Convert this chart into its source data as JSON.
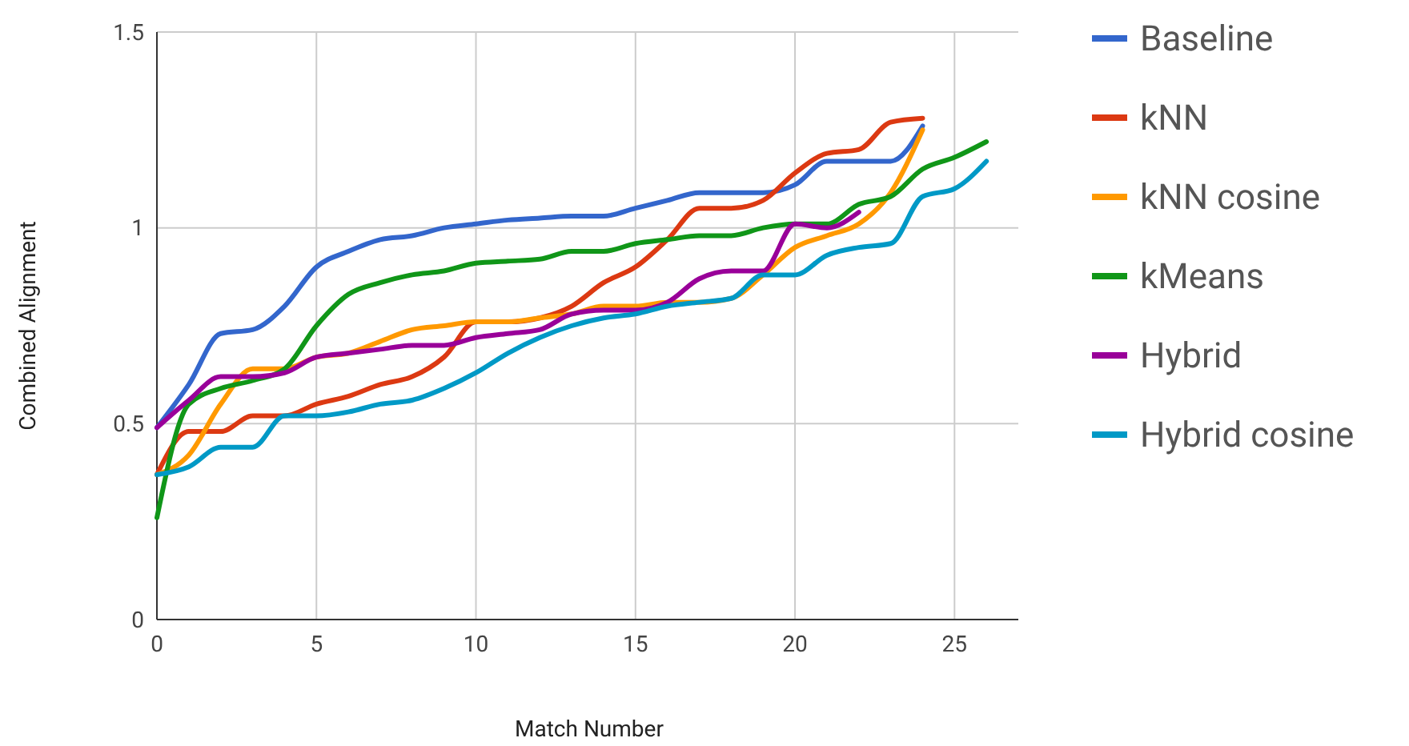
{
  "chart_data": {
    "type": "line",
    "xlabel": "Match Number",
    "ylabel": "Combined Alignment",
    "x": [
      0,
      1,
      2,
      3,
      4,
      5,
      6,
      7,
      8,
      9,
      10,
      11,
      12,
      13,
      14,
      15,
      16,
      17,
      18,
      19,
      20,
      21,
      22,
      23,
      24,
      25,
      26
    ],
    "xlim": [
      0,
      27
    ],
    "xticks": [
      0,
      5,
      10,
      15,
      20,
      25
    ],
    "ylim": [
      0,
      1.5
    ],
    "yticks": [
      0,
      0.5,
      1,
      1.5
    ],
    "grid": true,
    "legend": "right",
    "marker": "none",
    "line_style": "solid",
    "series": [
      {
        "name": "Baseline",
        "color": "#3366cc",
        "values": [
          0.49,
          0.6,
          0.73,
          0.74,
          0.8,
          0.9,
          0.94,
          0.97,
          0.98,
          1.0,
          1.01,
          1.02,
          1.025,
          1.03,
          1.03,
          1.05,
          1.07,
          1.09,
          1.09,
          1.09,
          1.11,
          1.17,
          1.17,
          1.17,
          1.26,
          null,
          null
        ]
      },
      {
        "name": "kNN",
        "color": "#dc3912",
        "values": [
          0.37,
          0.48,
          0.48,
          0.52,
          0.52,
          0.55,
          0.57,
          0.6,
          0.62,
          0.67,
          0.76,
          0.76,
          0.77,
          0.8,
          0.86,
          0.9,
          0.97,
          1.05,
          1.05,
          1.07,
          1.14,
          1.19,
          1.2,
          1.27,
          1.28,
          null,
          null
        ]
      },
      {
        "name": "kNN cosine",
        "color": "#ff9900",
        "values": [
          0.37,
          0.42,
          0.55,
          0.64,
          0.64,
          0.67,
          0.68,
          0.71,
          0.74,
          0.75,
          0.76,
          0.76,
          0.77,
          0.78,
          0.8,
          0.8,
          0.81,
          0.81,
          0.82,
          0.88,
          0.95,
          0.98,
          1.01,
          1.09,
          1.25,
          null,
          null
        ]
      },
      {
        "name": "kMeans",
        "color": "#109618",
        "values": [
          0.26,
          0.55,
          0.59,
          0.61,
          0.64,
          0.75,
          0.83,
          0.86,
          0.88,
          0.89,
          0.91,
          0.915,
          0.92,
          0.94,
          0.94,
          0.96,
          0.97,
          0.98,
          0.98,
          1.0,
          1.01,
          1.01,
          1.06,
          1.08,
          1.15,
          1.18,
          1.22
        ]
      },
      {
        "name": "Hybrid",
        "color": "#990099",
        "values": [
          0.49,
          0.56,
          0.62,
          0.62,
          0.63,
          0.67,
          0.68,
          0.69,
          0.7,
          0.7,
          0.72,
          0.73,
          0.74,
          0.78,
          0.79,
          0.79,
          0.81,
          0.87,
          0.89,
          0.89,
          1.01,
          1.0,
          1.04,
          null,
          null,
          null,
          null
        ]
      },
      {
        "name": "Hybrid cosine",
        "color": "#0099c6",
        "values": [
          0.37,
          0.39,
          0.44,
          0.44,
          0.52,
          0.52,
          0.53,
          0.55,
          0.56,
          0.59,
          0.63,
          0.68,
          0.72,
          0.75,
          0.77,
          0.78,
          0.8,
          0.81,
          0.82,
          0.88,
          0.88,
          0.93,
          0.95,
          0.96,
          1.08,
          1.1,
          1.17
        ]
      }
    ]
  }
}
